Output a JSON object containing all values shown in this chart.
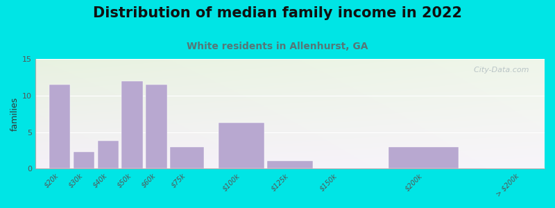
{
  "title": "Distribution of median family income in 2022",
  "subtitle": "White residents in Allenhurst, GA",
  "ylabel": "families",
  "categories": [
    "$20k",
    "$30k",
    "$40k",
    "$50k",
    "$60k",
    "$75k",
    "$100k",
    "$125k",
    "$150k",
    "$200k",
    "> $200k"
  ],
  "x_positions": [
    0,
    1,
    2,
    3,
    4,
    5,
    7,
    9,
    11,
    14,
    18
  ],
  "bar_widths": [
    1,
    1,
    1,
    1,
    1,
    1.5,
    2,
    2,
    2,
    3,
    3
  ],
  "values": [
    11.5,
    2.3,
    3.8,
    12.0,
    11.5,
    3.0,
    6.3,
    1.1,
    0,
    3.0,
    0
  ],
  "bar_color": "#b8a8d0",
  "ylim": [
    0,
    15
  ],
  "yticks": [
    0,
    5,
    10,
    15
  ],
  "background_outer": "#00e5e5",
  "grad_top_color": "#e8f2e0",
  "grad_bottom_color": "#f5f0f8",
  "title_fontsize": 15,
  "subtitle_fontsize": 10,
  "subtitle_color": "#557777",
  "watermark": "  City-Data.com",
  "watermark_color": "#b0bcc0"
}
